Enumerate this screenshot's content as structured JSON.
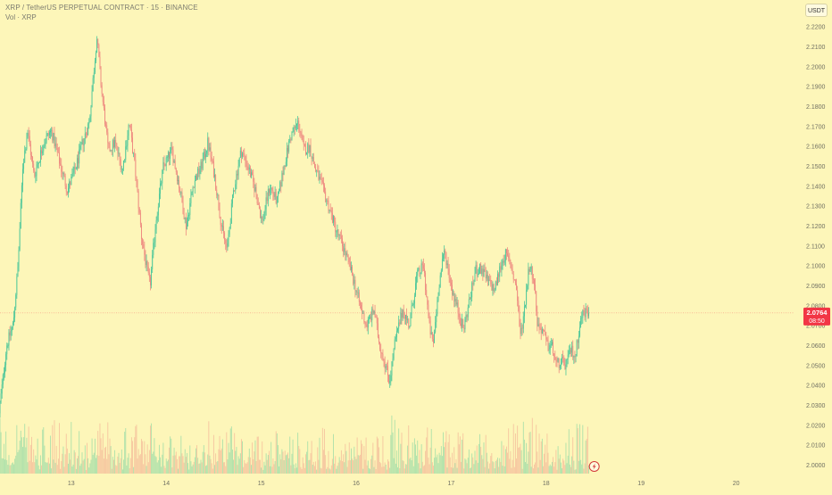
{
  "header": {
    "symbol_title": "XRP / TetherUS PERPETUAL CONTRACT · 15 · BINANCE",
    "volume_label": "Vol · XRP",
    "currency_button": "USDT"
  },
  "price_badge": {
    "price": "2.0764",
    "countdown": "08:50"
  },
  "colors": {
    "background": "#fdf6b9",
    "up": "#4cc79a",
    "down": "#ee8a80",
    "price_badge": "#f23645"
  },
  "chart_data": {
    "type": "candlestick",
    "yaxis_ticks": [
      "2.2200",
      "2.2100",
      "2.2000",
      "2.1900",
      "2.1800",
      "2.1700",
      "2.1600",
      "2.1500",
      "2.1400",
      "2.1300",
      "2.1200",
      "2.1100",
      "2.1000",
      "2.0900",
      "2.0800",
      "2.0700",
      "2.0600",
      "2.0500",
      "2.0400",
      "2.0300",
      "2.0200",
      "2.0100",
      "2.0000"
    ],
    "ylim": [
      1.998,
      2.229
    ],
    "xaxis_ticks": [
      "13",
      "14",
      "15",
      "16",
      "17",
      "18",
      "19",
      "20"
    ],
    "x_range_days": [
      12.25,
      20.1
    ],
    "last_price": 2.0764,
    "grid": false,
    "price_path": [
      [
        12.25,
        2.026
      ],
      [
        12.33,
        2.06
      ],
      [
        12.4,
        2.071
      ],
      [
        12.45,
        2.1
      ],
      [
        12.5,
        2.15
      ],
      [
        12.55,
        2.168
      ],
      [
        12.62,
        2.145
      ],
      [
        12.72,
        2.162
      ],
      [
        12.8,
        2.168
      ],
      [
        12.9,
        2.15
      ],
      [
        12.97,
        2.138
      ],
      [
        13.05,
        2.148
      ],
      [
        13.13,
        2.162
      ],
      [
        13.2,
        2.172
      ],
      [
        13.28,
        2.215
      ],
      [
        13.33,
        2.188
      ],
      [
        13.4,
        2.158
      ],
      [
        13.47,
        2.162
      ],
      [
        13.55,
        2.148
      ],
      [
        13.62,
        2.172
      ],
      [
        13.68,
        2.15
      ],
      [
        13.75,
        2.115
      ],
      [
        13.8,
        2.1
      ],
      [
        13.84,
        2.09
      ],
      [
        13.9,
        2.122
      ],
      [
        13.98,
        2.15
      ],
      [
        14.07,
        2.158
      ],
      [
        14.14,
        2.142
      ],
      [
        14.22,
        2.12
      ],
      [
        14.3,
        2.142
      ],
      [
        14.38,
        2.15
      ],
      [
        14.45,
        2.162
      ],
      [
        14.52,
        2.145
      ],
      [
        14.6,
        2.118
      ],
      [
        14.65,
        2.108
      ],
      [
        14.72,
        2.138
      ],
      [
        14.8,
        2.158
      ],
      [
        14.87,
        2.15
      ],
      [
        14.95,
        2.138
      ],
      [
        15.02,
        2.122
      ],
      [
        15.1,
        2.14
      ],
      [
        15.18,
        2.132
      ],
      [
        15.25,
        2.15
      ],
      [
        15.32,
        2.165
      ],
      [
        15.4,
        2.172
      ],
      [
        15.46,
        2.158
      ],
      [
        15.52,
        2.16
      ],
      [
        15.57,
        2.15
      ],
      [
        15.65,
        2.14
      ],
      [
        15.72,
        2.13
      ],
      [
        15.8,
        2.118
      ],
      [
        15.87,
        2.11
      ],
      [
        15.94,
        2.1
      ],
      [
        16.0,
        2.09
      ],
      [
        16.05,
        2.08
      ],
      [
        16.12,
        2.07
      ],
      [
        16.2,
        2.078
      ],
      [
        16.25,
        2.062
      ],
      [
        16.32,
        2.05
      ],
      [
        16.36,
        2.042
      ],
      [
        16.42,
        2.062
      ],
      [
        16.5,
        2.078
      ],
      [
        16.57,
        2.07
      ],
      [
        16.65,
        2.095
      ],
      [
        16.72,
        2.1
      ],
      [
        16.78,
        2.07
      ],
      [
        16.82,
        2.06
      ],
      [
        16.88,
        2.09
      ],
      [
        16.94,
        2.108
      ],
      [
        17.02,
        2.088
      ],
      [
        17.08,
        2.078
      ],
      [
        17.14,
        2.068
      ],
      [
        17.2,
        2.082
      ],
      [
        17.27,
        2.098
      ],
      [
        17.33,
        2.098
      ],
      [
        17.4,
        2.092
      ],
      [
        17.47,
        2.088
      ],
      [
        17.53,
        2.1
      ],
      [
        17.58,
        2.106
      ],
      [
        17.64,
        2.1
      ],
      [
        17.7,
        2.088
      ],
      [
        17.74,
        2.064
      ],
      [
        17.78,
        2.078
      ],
      [
        17.83,
        2.1
      ],
      [
        17.88,
        2.095
      ],
      [
        17.92,
        2.07
      ],
      [
        17.97,
        2.068
      ],
      [
        18.02,
        2.06
      ],
      [
        18.07,
        2.06
      ],
      [
        18.12,
        2.05
      ],
      [
        18.16,
        2.052
      ],
      [
        18.22,
        2.05
      ],
      [
        18.27,
        2.058
      ],
      [
        18.32,
        2.055
      ],
      [
        18.36,
        2.07
      ],
      [
        18.4,
        2.077
      ],
      [
        18.45,
        2.0764
      ]
    ]
  }
}
